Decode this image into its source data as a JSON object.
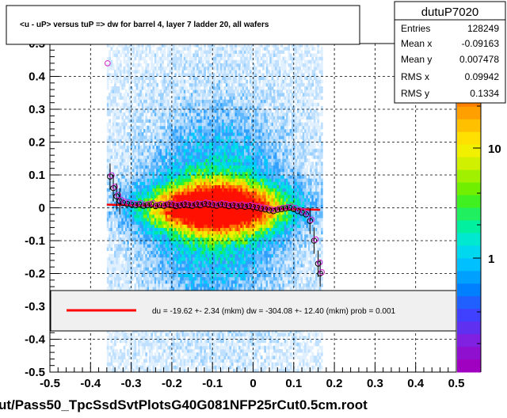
{
  "chart_data": {
    "type": "scatter",
    "title": "<u - uP>       versus  tuP =>  dw for barrel 4, layer 7 ladder 20, all wafers",
    "xlabel": "",
    "ylabel": "",
    "xlim": [
      -0.5,
      0.5
    ],
    "ylim": [
      -0.5,
      0.5
    ],
    "x_ticks": [
      "-0.5",
      "-0.4",
      "-0.3",
      "-0.2",
      "-0.1",
      "0",
      "0.1",
      "0.2",
      "0.3",
      "0.4",
      "0.5"
    ],
    "y_ticks": [
      "-0.5",
      "-0.4",
      "-0.3",
      "-0.2",
      "-0.1",
      "0",
      "0.1",
      "0.2",
      "0.3",
      "0.4",
      "0.5"
    ],
    "x_tick_values": [
      -0.5,
      -0.4,
      -0.3,
      -0.2,
      -0.1,
      0,
      0.1,
      0.2,
      0.3,
      0.4,
      0.5
    ],
    "y_tick_values": [
      -0.5,
      -0.4,
      -0.3,
      -0.2,
      -0.1,
      0,
      0.1,
      0.2,
      0.3,
      0.4,
      0.5
    ],
    "grid": true,
    "heatmap_extent": {
      "x": [
        -0.36,
        0.17
      ],
      "y": [
        -0.5,
        0.5
      ]
    },
    "profile_points": {
      "x": [
        -0.352,
        -0.344,
        -0.336,
        -0.328,
        -0.32,
        -0.31,
        -0.3,
        -0.29,
        -0.28,
        -0.27,
        -0.26,
        -0.25,
        -0.24,
        -0.23,
        -0.22,
        -0.21,
        -0.2,
        -0.19,
        -0.18,
        -0.17,
        -0.16,
        -0.15,
        -0.14,
        -0.13,
        -0.12,
        -0.11,
        -0.1,
        -0.09,
        -0.08,
        -0.07,
        -0.06,
        -0.05,
        -0.04,
        -0.03,
        -0.02,
        -0.01,
        0.0,
        0.01,
        0.02,
        0.03,
        0.04,
        0.05,
        0.06,
        0.07,
        0.08,
        0.09,
        0.1,
        0.11,
        0.12,
        0.13,
        0.14,
        0.15,
        0.16,
        0.165
      ],
      "y": [
        0.095,
        0.06,
        0.035,
        0.02,
        0.015,
        0.012,
        0.01,
        0.008,
        0.01,
        0.006,
        0.008,
        0.01,
        0.005,
        0.008,
        0.006,
        0.01,
        0.008,
        0.005,
        0.007,
        0.01,
        0.008,
        0.006,
        0.01,
        0.008,
        0.012,
        0.01,
        0.008,
        0.006,
        0.01,
        0.008,
        0.005,
        0.007,
        0.004,
        0.006,
        0.003,
        0.005,
        0.002,
        0.0,
        -0.003,
        -0.005,
        -0.008,
        -0.01,
        -0.006,
        -0.004,
        -0.002,
        0.0,
        -0.004,
        -0.01,
        -0.015,
        -0.02,
        -0.04,
        -0.1,
        -0.17,
        -0.2
      ],
      "outlier": {
        "x": -0.358,
        "y": 0.44
      }
    },
    "fit_line": {
      "x": [
        -0.36,
        0.165
      ],
      "y": [
        0.0096,
        -0.006
      ]
    },
    "color_scale": {
      "labels": [
        "1",
        "10"
      ],
      "top_label_fragment": "2"
    },
    "fit_result": "du =  -19.62 +-  2.34 (mkm) dw = -304.08 +- 12.40 (mkm) prob = 0.001",
    "file_label": "ut/Pass50_TpcSsdSvtPlotsG40G081NFP25rCut0.5cm.root"
  },
  "stats": {
    "title": "dutuP7020",
    "rows": [
      {
        "label": "Entries",
        "value": "128249"
      },
      {
        "label": "Mean x",
        "value": "-0.09163"
      },
      {
        "label": "Mean y",
        "value": "0.007478"
      },
      {
        "label": "RMS x",
        "value": "0.09942"
      },
      {
        "label": "RMS y",
        "value": "0.1334"
      }
    ]
  },
  "colors": {
    "fit_line": "#ff0000",
    "legend_bg": "#f0f0f0",
    "grid": "#000000"
  }
}
